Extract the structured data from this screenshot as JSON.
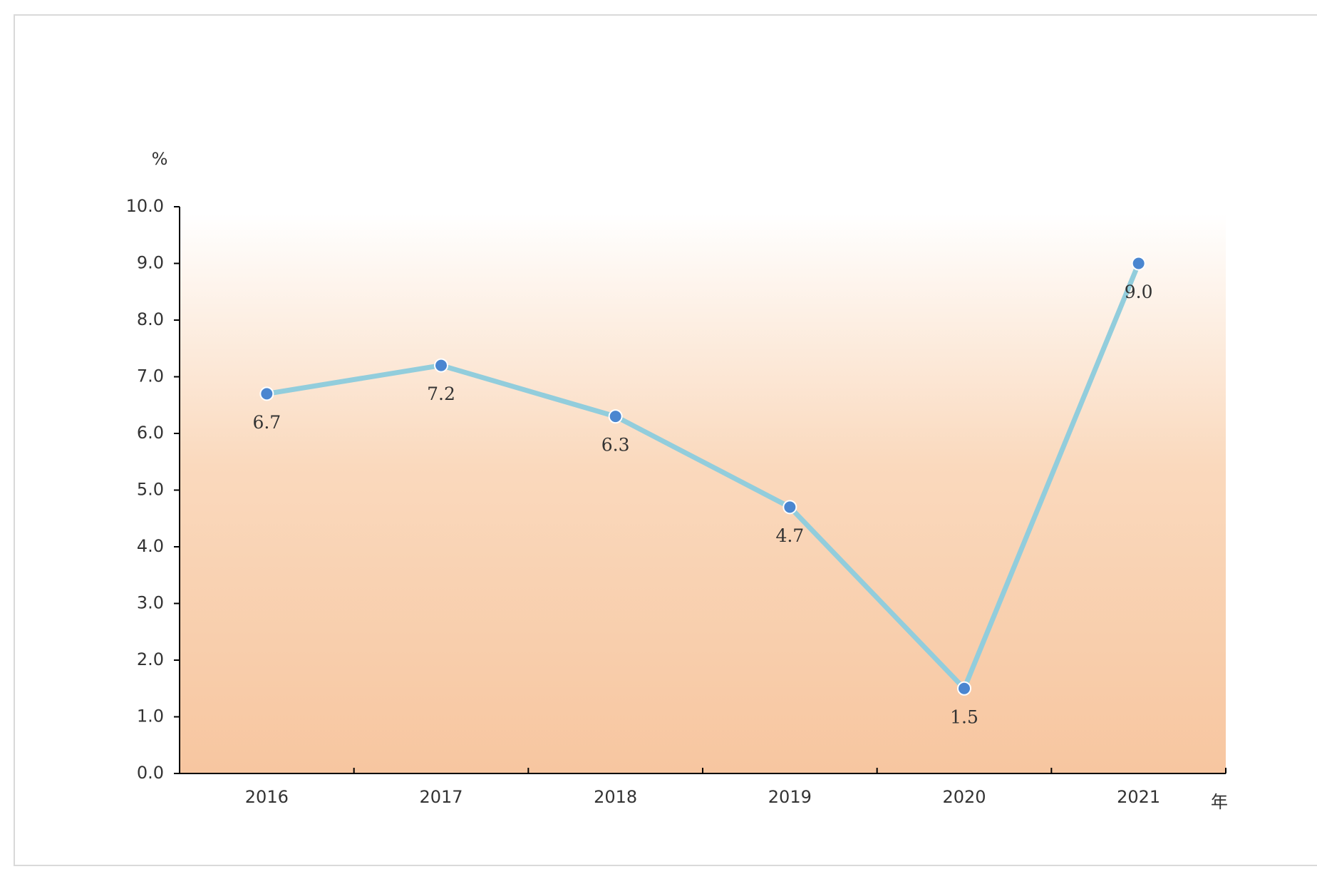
{
  "chart_data": {
    "type": "line",
    "y_label": "%",
    "x_label": "年",
    "categories": [
      "2016",
      "2017",
      "2018",
      "2019",
      "2020",
      "2021"
    ],
    "values": [
      6.7,
      7.2,
      6.3,
      4.7,
      1.5,
      9.0
    ],
    "value_labels": [
      "6.7",
      "7.2",
      "6.3",
      "4.7",
      "1.5",
      "9.0"
    ],
    "color": "#92cddc",
    "marker_color": "#4a86d0",
    "ylim": [
      0,
      10
    ],
    "yticks": [
      {
        "value": 0,
        "label": "0.0"
      },
      {
        "value": 1,
        "label": "1.0"
      },
      {
        "value": 2,
        "label": "2.0"
      },
      {
        "value": 3,
        "label": "3.0"
      },
      {
        "value": 4,
        "label": "4.0"
      },
      {
        "value": 5,
        "label": "5.0"
      },
      {
        "value": 6,
        "label": "6.0"
      },
      {
        "value": 7,
        "label": "7.0"
      },
      {
        "value": 8,
        "label": "8.0"
      },
      {
        "value": 9,
        "label": "9.0"
      },
      {
        "value": 10,
        "label": "10.0"
      }
    ],
    "grid": false
  }
}
